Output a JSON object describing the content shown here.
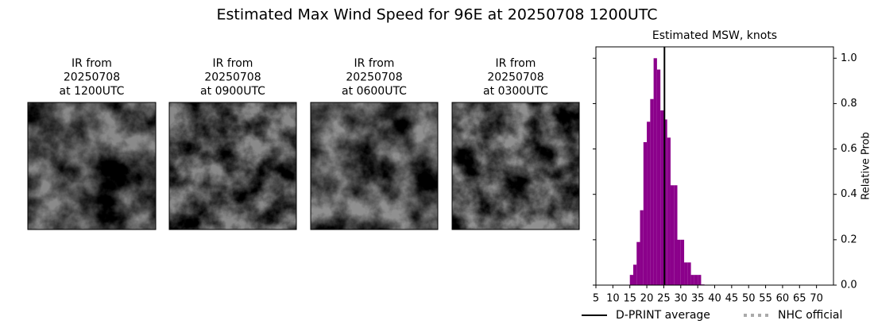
{
  "title": "Estimated Max Wind Speed for 96E at 20250708 1200UTC",
  "panels": [
    {
      "lines": [
        "IR from",
        "20250708",
        "at 1200UTC"
      ]
    },
    {
      "lines": [
        "IR from",
        "20250708",
        "at 0900UTC"
      ]
    },
    {
      "lines": [
        "IR from",
        "20250708",
        "at 0600UTC"
      ]
    },
    {
      "lines": [
        "IR from",
        "20250708",
        "at 0300UTC"
      ]
    }
  ],
  "chart_data": {
    "type": "histogram",
    "title": "Estimated MSW, knots",
    "ylabel": "Relative Prob",
    "color": "#8b008b",
    "bins": [
      15,
      16,
      17,
      18,
      19,
      20,
      21,
      22,
      23,
      24,
      25,
      26,
      27,
      28,
      29,
      30,
      31,
      32,
      33,
      34,
      35,
      36,
      37
    ],
    "values": [
      0.045,
      0.09,
      0.19,
      0.33,
      0.63,
      0.72,
      0.82,
      1.0,
      0.95,
      0.77,
      0.73,
      0.65,
      0.44,
      0.44,
      0.2,
      0.2,
      0.1,
      0.1,
      0.045,
      0.045,
      0.045,
      0.003
    ],
    "average": 25.2,
    "xlim": [
      5,
      75
    ],
    "ylim": [
      0,
      1.05
    ],
    "xticks": [
      5,
      10,
      15,
      20,
      25,
      30,
      35,
      40,
      45,
      50,
      55,
      60,
      65,
      70
    ],
    "yticks": [
      {
        "value": 0,
        "label": "0.0"
      },
      0.2,
      0.4,
      0.6,
      0.8,
      {
        "value": 1,
        "label": "1.0"
      }
    ],
    "legend": [
      {
        "name": "D-PRINT average",
        "color": "#000000",
        "style": "solid"
      },
      {
        "name": "NHC official",
        "color": "#aaaaaa",
        "style": "dotted"
      }
    ]
  }
}
